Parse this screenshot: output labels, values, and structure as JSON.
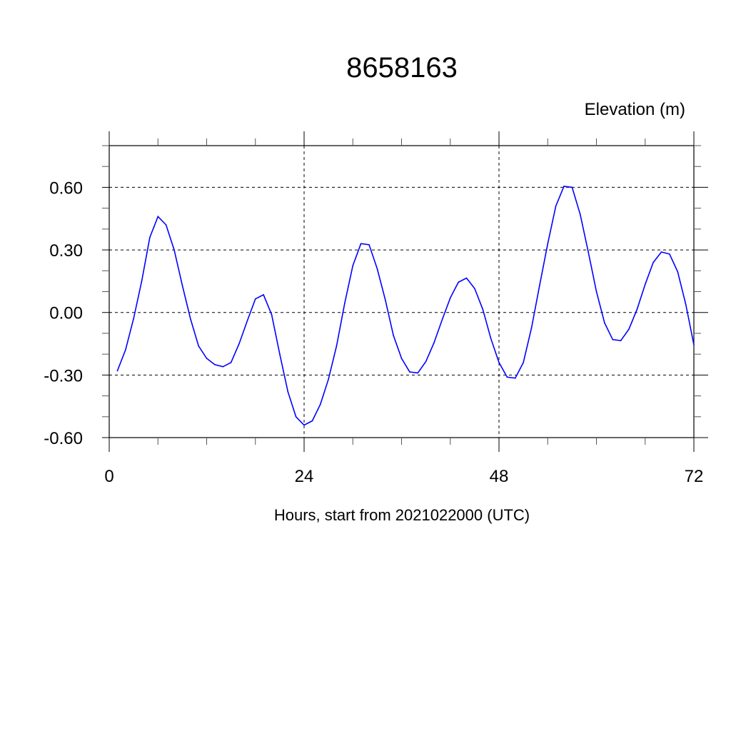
{
  "chart_data": {
    "type": "line",
    "title": "8658163",
    "subtitle": "Elevation (m)",
    "xlabel": "Hours, start from 2021022000 (UTC)",
    "ylabel": "",
    "xlim": [
      0,
      72
    ],
    "ylim": [
      -0.6,
      0.8
    ],
    "xticks": [
      0,
      24,
      48,
      72
    ],
    "xtick_labels": [
      "0",
      "24",
      "48",
      "72"
    ],
    "yticks": [
      0.6,
      0.3,
      0.0,
      -0.3,
      -0.6
    ],
    "ytick_labels": [
      "0.60",
      "0.30",
      "0.00",
      "-0.30",
      "-0.60"
    ],
    "grid": true,
    "line_color": "#0000ff",
    "series": [
      {
        "x": [
          1,
          2,
          3,
          4,
          5,
          6,
          7,
          8,
          9,
          10,
          11,
          12,
          13,
          14,
          15,
          16,
          17,
          18,
          19,
          20,
          21,
          22,
          23,
          24,
          25,
          26,
          27,
          28,
          29,
          30,
          31,
          32,
          33,
          34,
          35,
          36,
          37,
          38,
          39,
          40,
          41,
          42,
          43,
          44,
          45,
          46,
          47,
          48,
          49,
          50,
          51,
          52,
          53,
          54,
          55,
          56,
          57,
          58,
          59,
          60,
          61,
          62,
          63,
          64,
          65,
          66,
          67,
          68,
          69,
          70,
          71,
          72
        ],
        "values": [
          -0.28,
          -0.18,
          -0.03,
          0.15,
          0.36,
          0.46,
          0.42,
          0.3,
          0.13,
          -0.03,
          -0.16,
          -0.22,
          -0.25,
          -0.26,
          -0.24,
          -0.15,
          -0.04,
          0.065,
          0.085,
          -0.01,
          -0.2,
          -0.38,
          -0.5,
          -0.54,
          -0.52,
          -0.44,
          -0.32,
          -0.16,
          0.045,
          0.225,
          0.33,
          0.325,
          0.21,
          0.06,
          -0.11,
          -0.22,
          -0.285,
          -0.29,
          -0.235,
          -0.145,
          -0.035,
          0.07,
          0.145,
          0.165,
          0.115,
          0.015,
          -0.125,
          -0.24,
          -0.31,
          -0.315,
          -0.24,
          -0.075,
          0.13,
          0.33,
          0.51,
          0.605,
          0.6,
          0.47,
          0.29,
          0.1,
          -0.05,
          -0.13,
          -0.135,
          -0.08,
          0.015,
          0.135,
          0.24,
          0.29,
          0.28,
          0.195,
          0.04,
          -0.155
        ]
      }
    ]
  }
}
